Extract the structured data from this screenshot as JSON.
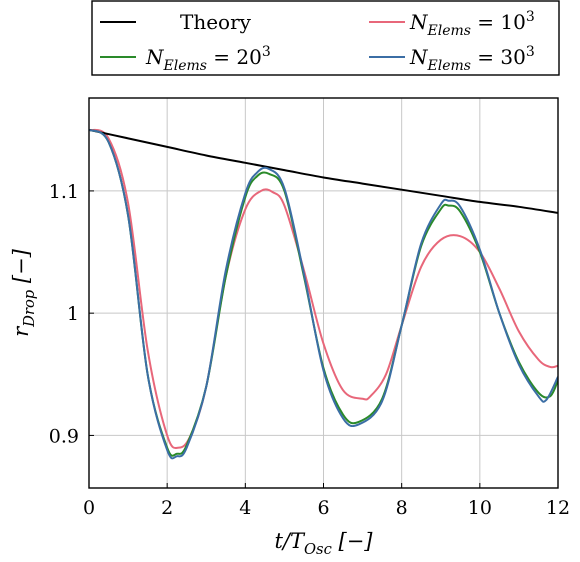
{
  "chart_data": {
    "type": "line",
    "xlabel": "t/T_Osc [−]",
    "ylabel": "r_Drop [−]",
    "xlim": [
      0,
      12
    ],
    "ylim": [
      0.857,
      1.176
    ],
    "xticks": [
      0,
      2,
      4,
      6,
      8,
      10,
      12
    ],
    "xtick_labels": [
      "0",
      "2",
      "4",
      "6",
      "8",
      "10",
      "12"
    ],
    "yticks": [
      0.9,
      1.0,
      1.1
    ],
    "ytick_labels": [
      "0.9",
      "1",
      "1.1"
    ],
    "grid": true,
    "legend_position": "top, above plot, two columns",
    "series": [
      {
        "name": "Theory",
        "legend_label": "Theory",
        "color": "#000000",
        "x": [
          0,
          1,
          2,
          3,
          4,
          5,
          6,
          7,
          8,
          9,
          10,
          11,
          12
        ],
        "y": [
          1.15,
          1.143,
          1.136,
          1.129,
          1.123,
          1.117,
          1.111,
          1.106,
          1.101,
          1.096,
          1.091,
          1.087,
          1.082
        ]
      },
      {
        "name": "N_Elems = 10^3",
        "legend_label": "N_Elems = 10^3",
        "color": "#e8677a",
        "x": [
          0,
          0.5,
          1,
          1.5,
          2,
          2.3,
          2.6,
          3,
          3.5,
          4,
          4.4,
          4.7,
          5,
          5.5,
          6,
          6.5,
          7,
          7.2,
          7.6,
          8,
          8.5,
          9,
          9.5,
          10,
          10.5,
          11,
          11.5,
          11.8,
          12
        ],
        "y": [
          1.15,
          1.143,
          1.09,
          0.97,
          0.9,
          0.89,
          0.9,
          0.94,
          1.03,
          1.085,
          1.1,
          1.099,
          1.088,
          1.035,
          0.975,
          0.937,
          0.93,
          0.932,
          0.95,
          0.99,
          1.038,
          1.06,
          1.063,
          1.05,
          1.02,
          0.985,
          0.962,
          0.956,
          0.957
        ]
      },
      {
        "name": "N_Elems = 20^3",
        "legend_label": "N_Elems = 20^3",
        "color": "#2a8a2a",
        "x": [
          0,
          0.5,
          1,
          1.5,
          2,
          2.25,
          2.5,
          3,
          3.5,
          4,
          4.3,
          4.6,
          5,
          5.5,
          6,
          6.5,
          6.9,
          7.5,
          8,
          8.5,
          9,
          9.2,
          9.5,
          10,
          10.5,
          11,
          11.5,
          11.8,
          12
        ],
        "y": [
          1.15,
          1.14,
          1.08,
          0.95,
          0.89,
          0.885,
          0.892,
          0.94,
          1.03,
          1.095,
          1.112,
          1.114,
          1.1,
          1.03,
          0.955,
          0.917,
          0.911,
          0.93,
          0.99,
          1.055,
          1.085,
          1.088,
          1.083,
          1.05,
          1.0,
          0.96,
          0.935,
          0.932,
          0.945
        ]
      },
      {
        "name": "N_Elems = 30^3",
        "legend_label": "N_Elems = 30^3",
        "color": "#3b6ea5",
        "x": [
          0,
          0.5,
          1,
          1.5,
          2,
          2.25,
          2.5,
          3,
          3.5,
          4,
          4.3,
          4.6,
          5,
          5.5,
          6,
          6.5,
          6.9,
          7.5,
          8,
          8.5,
          9,
          9.2,
          9.5,
          10,
          10.5,
          11,
          11.5,
          11.7,
          12
        ],
        "y": [
          1.15,
          1.14,
          1.08,
          0.95,
          0.888,
          0.883,
          0.89,
          0.94,
          1.035,
          1.098,
          1.115,
          1.118,
          1.102,
          1.032,
          0.953,
          0.914,
          0.909,
          0.928,
          0.99,
          1.057,
          1.089,
          1.092,
          1.087,
          1.052,
          1.0,
          0.958,
          0.932,
          0.929,
          0.948
        ]
      }
    ]
  }
}
